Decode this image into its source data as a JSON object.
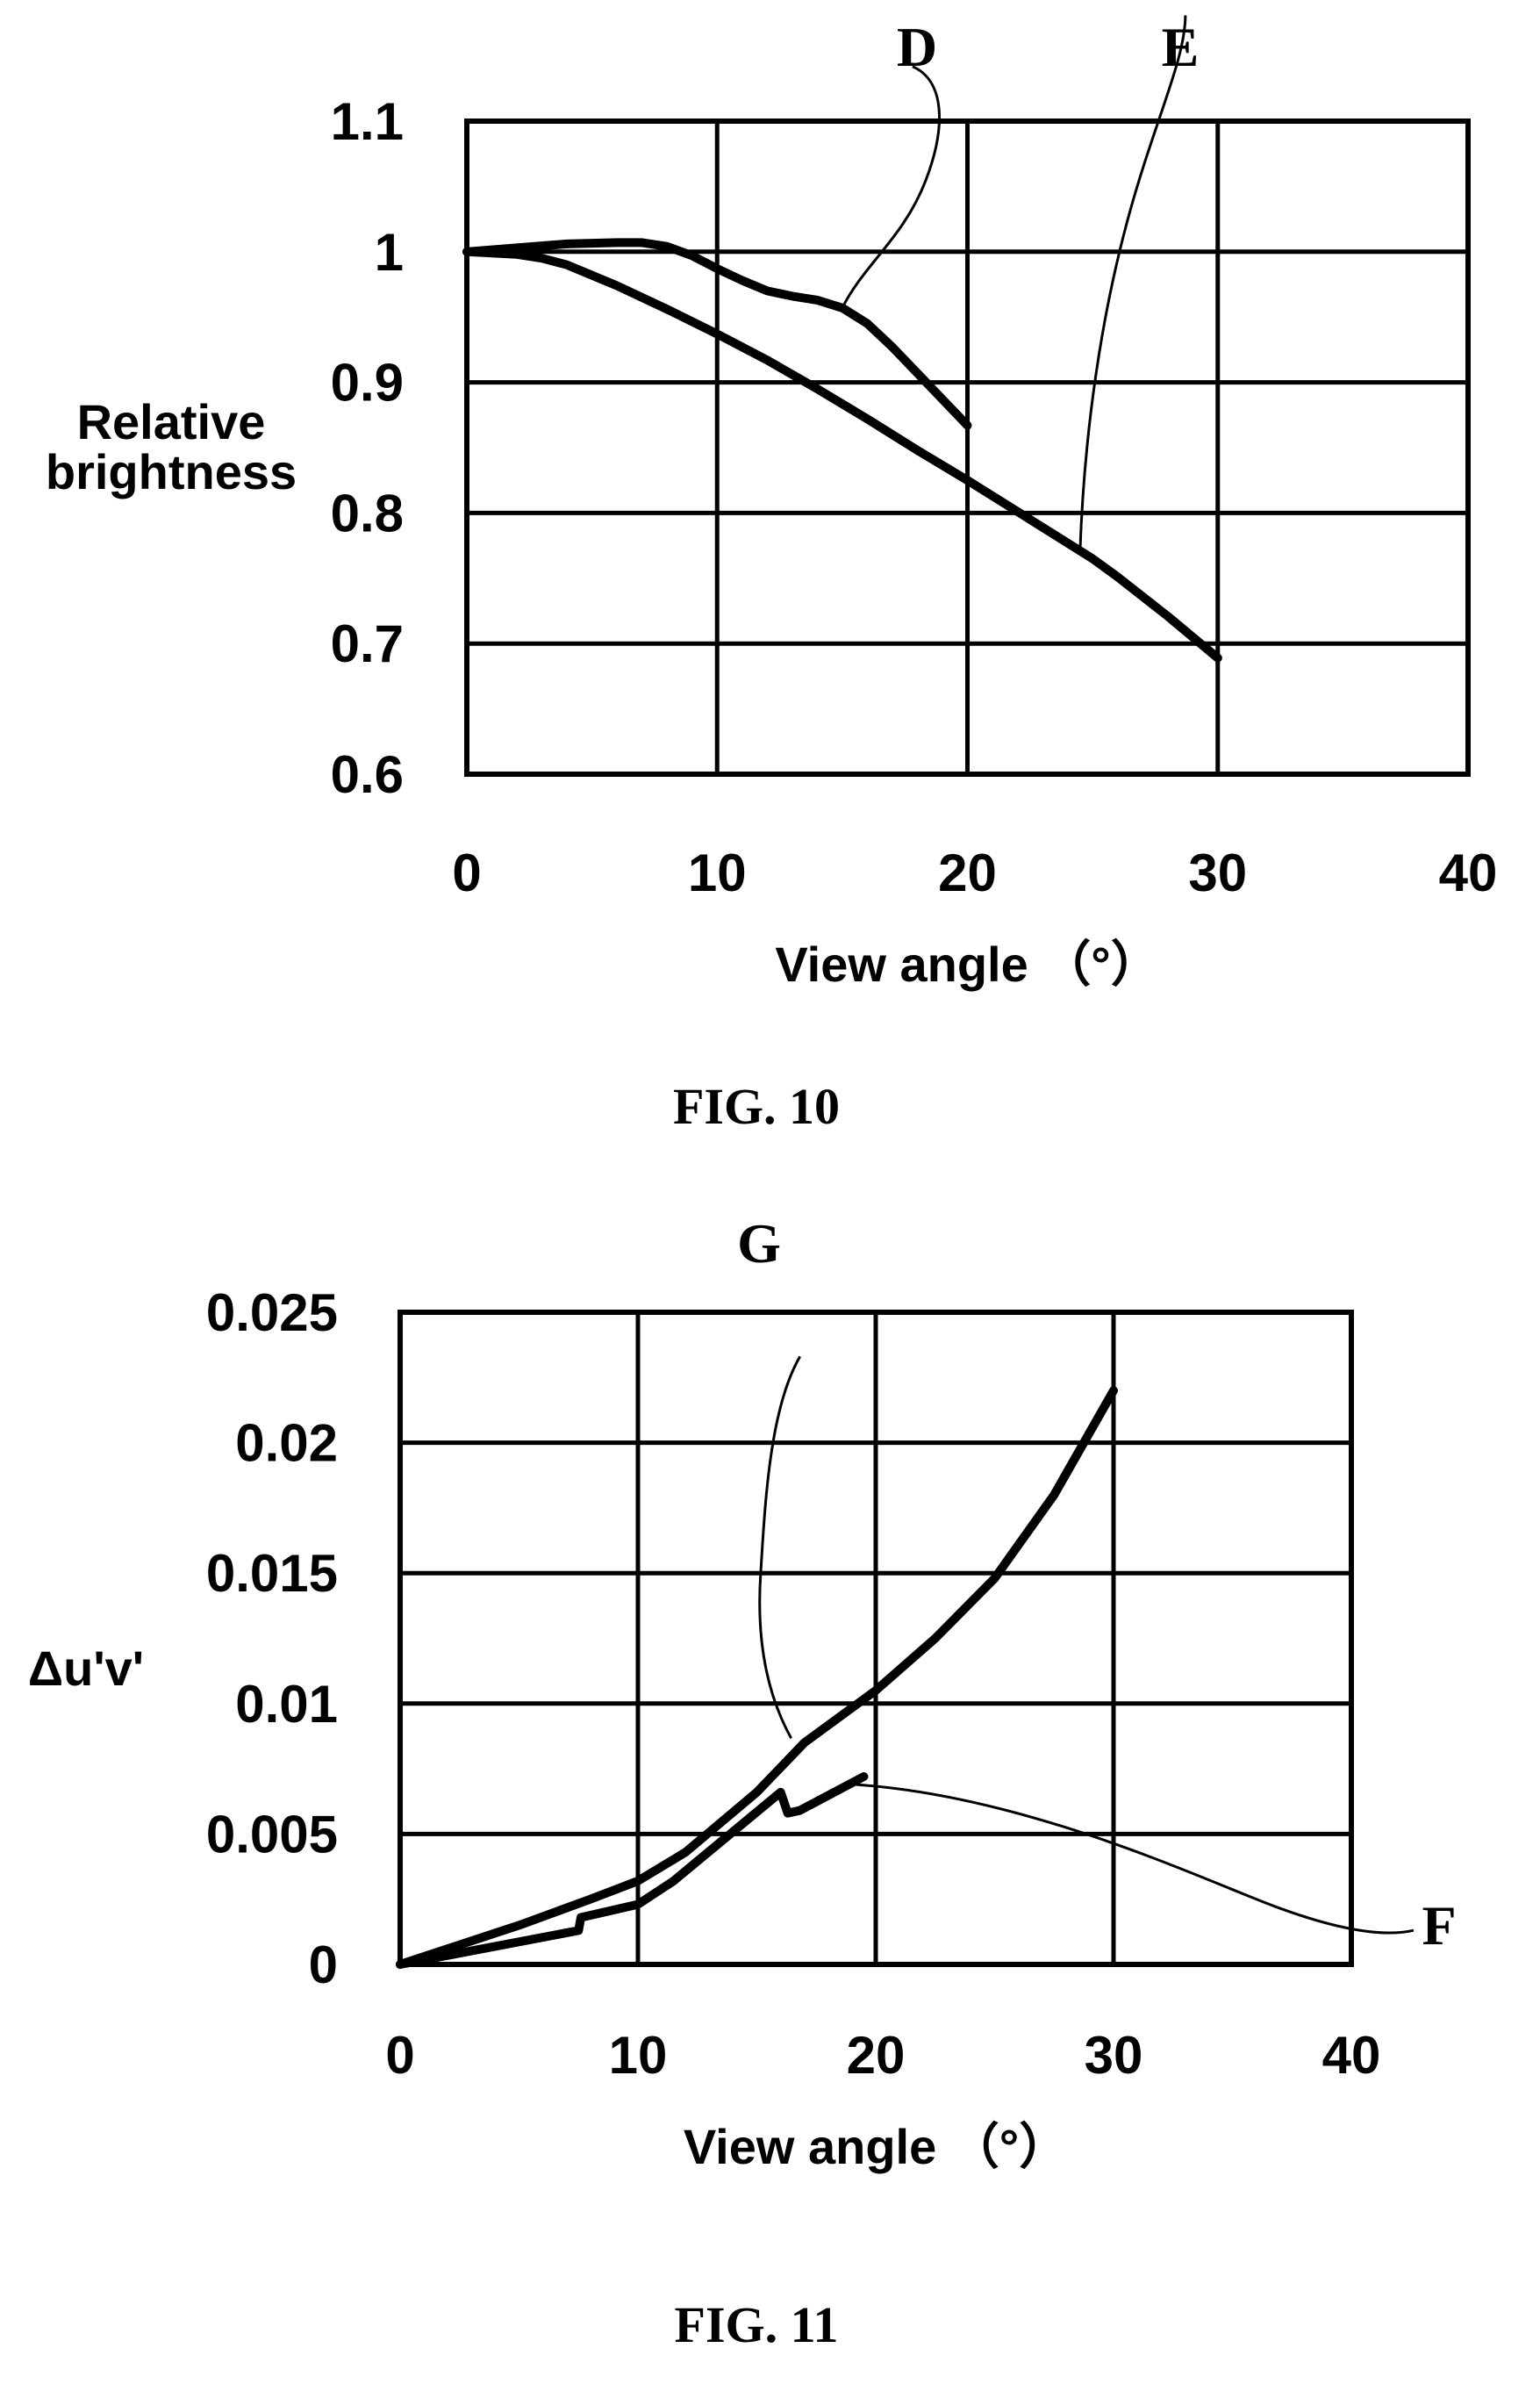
{
  "chart_data": [
    {
      "type": "line",
      "caption": "FIG. 10",
      "xlabel": "View angle （°）",
      "ylabel_lines": [
        "Relative",
        "brightness"
      ],
      "xlim": [
        0,
        40
      ],
      "ylim": [
        0.6,
        1.1
      ],
      "grid": true,
      "x_ticks": [
        0,
        10,
        20,
        30,
        40
      ],
      "x_tick_labels": [
        "0",
        "10",
        "20",
        "30",
        "40"
      ],
      "y_ticks": [
        0.6,
        0.7,
        0.8,
        0.9,
        1.0,
        1.1
      ],
      "y_tick_labels": [
        "0.6",
        "0.7",
        "0.8",
        "0.9",
        "1",
        "1.1"
      ],
      "series": [
        {
          "name": "D",
          "x": [
            0,
            2,
            4,
            6,
            7,
            8,
            9,
            10,
            11,
            12,
            13,
            14,
            15,
            16,
            17,
            18,
            19,
            20
          ],
          "y": [
            1.0,
            1.003,
            1.006,
            1.007,
            1.007,
            1.004,
            0.997,
            0.987,
            0.978,
            0.97,
            0.966,
            0.963,
            0.957,
            0.945,
            0.927,
            0.907,
            0.887,
            0.867
          ],
          "label_at_x": 15
        },
        {
          "name": "E",
          "x": [
            0,
            1,
            2,
            3,
            4,
            5,
            6,
            8,
            10,
            12,
            14,
            16,
            18,
            20,
            22,
            24,
            25,
            26,
            28,
            30
          ],
          "y": [
            1.0,
            0.999,
            0.998,
            0.995,
            0.99,
            0.982,
            0.974,
            0.956,
            0.937,
            0.917,
            0.895,
            0.872,
            0.848,
            0.825,
            0.801,
            0.777,
            0.765,
            0.751,
            0.721,
            0.689
          ],
          "label_at_x": 24.5
        }
      ]
    },
    {
      "type": "line",
      "caption": "FIG. 11",
      "xlabel": "View angle （°）",
      "ylabel_lines": [
        "Δu'v'"
      ],
      "xlim": [
        0,
        40
      ],
      "ylim": [
        0,
        0.025
      ],
      "grid": true,
      "x_ticks": [
        0,
        10,
        20,
        30,
        40
      ],
      "x_tick_labels": [
        "0",
        "10",
        "20",
        "30",
        "40"
      ],
      "y_ticks": [
        0,
        0.005,
        0.01,
        0.015,
        0.02,
        0.025
      ],
      "y_tick_labels": [
        "0",
        "0.005",
        "0.01",
        "0.015",
        "0.02",
        "0.025"
      ],
      "series": [
        {
          "name": "F",
          "x": [
            0,
            7.5,
            7.6,
            10,
            11.5,
            16,
            16.3,
            16.8,
            19.5
          ],
          "y": [
            0,
            0.0013,
            0.0018,
            0.0023,
            0.0032,
            0.0066,
            0.0058,
            0.0059,
            0.0072
          ],
          "label_at_x": 19
        },
        {
          "name": "G",
          "x": [
            0,
            5,
            8,
            10,
            12,
            15,
            17,
            20,
            22.5,
            25,
            27.5,
            30
          ],
          "y": [
            0,
            0.0015,
            0.0025,
            0.0032,
            0.0043,
            0.0066,
            0.0085,
            0.0105,
            0.0125,
            0.0148,
            0.018,
            0.022
          ],
          "label_at_x": 17
        }
      ]
    }
  ]
}
